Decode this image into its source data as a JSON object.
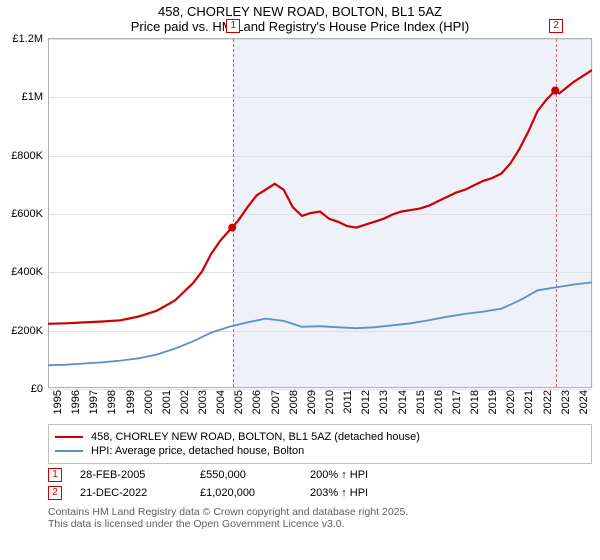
{
  "title": {
    "line1": "458, CHORLEY NEW ROAD, BOLTON, BL1 5AZ",
    "line2": "Price paid vs. HM Land Registry's House Price Index (HPI)",
    "fontsize": 13,
    "color": "#000000"
  },
  "chart": {
    "type": "line",
    "background_color": "#ffffff",
    "grid_color": "#e0e0e0",
    "axis_color": "#b0b0b0",
    "shaded_region": {
      "start_year": 2005.16,
      "end_year": 2025.0,
      "color": "rgba(160,180,210,0.18)"
    },
    "x": {
      "min": 1995,
      "max": 2025,
      "ticks": [
        1995,
        1996,
        1997,
        1998,
        1999,
        2000,
        2001,
        2002,
        2003,
        2004,
        2005,
        2006,
        2007,
        2008,
        2009,
        2010,
        2011,
        2012,
        2013,
        2014,
        2015,
        2016,
        2017,
        2018,
        2019,
        2020,
        2021,
        2022,
        2023,
        2024
      ],
      "label_fontsize": 11,
      "label_rotation_deg": -90
    },
    "y": {
      "min": 0,
      "max": 1200000,
      "ticks": [
        0,
        200000,
        400000,
        600000,
        800000,
        1000000,
        1200000
      ],
      "tick_labels": [
        "£0",
        "£200K",
        "£400K",
        "£600K",
        "£800K",
        "£1M",
        "£1.2M"
      ],
      "label_fontsize": 11
    },
    "series": [
      {
        "id": "price_paid",
        "label": "458, CHORLEY NEW ROAD, BOLTON, BL1 5AZ (detached house)",
        "color": "#cc0000",
        "line_width": 2.2,
        "data": [
          [
            1995.0,
            220000
          ],
          [
            1996.0,
            222000
          ],
          [
            1997.0,
            225000
          ],
          [
            1998.0,
            228000
          ],
          [
            1999.0,
            232000
          ],
          [
            2000.0,
            245000
          ],
          [
            2001.0,
            265000
          ],
          [
            2002.0,
            300000
          ],
          [
            2003.0,
            360000
          ],
          [
            2003.5,
            400000
          ],
          [
            2004.0,
            460000
          ],
          [
            2004.5,
            505000
          ],
          [
            2005.0,
            540000
          ],
          [
            2005.16,
            550000
          ],
          [
            2005.5,
            575000
          ],
          [
            2006.0,
            620000
          ],
          [
            2006.5,
            660000
          ],
          [
            2007.0,
            680000
          ],
          [
            2007.5,
            700000
          ],
          [
            2008.0,
            680000
          ],
          [
            2008.5,
            620000
          ],
          [
            2009.0,
            590000
          ],
          [
            2009.5,
            600000
          ],
          [
            2010.0,
            605000
          ],
          [
            2010.5,
            580000
          ],
          [
            2011.0,
            570000
          ],
          [
            2011.5,
            555000
          ],
          [
            2012.0,
            550000
          ],
          [
            2012.5,
            560000
          ],
          [
            2013.0,
            570000
          ],
          [
            2013.5,
            580000
          ],
          [
            2014.0,
            595000
          ],
          [
            2014.5,
            605000
          ],
          [
            2015.0,
            610000
          ],
          [
            2015.5,
            615000
          ],
          [
            2016.0,
            625000
          ],
          [
            2016.5,
            640000
          ],
          [
            2017.0,
            655000
          ],
          [
            2017.5,
            670000
          ],
          [
            2018.0,
            680000
          ],
          [
            2018.5,
            695000
          ],
          [
            2019.0,
            710000
          ],
          [
            2019.5,
            720000
          ],
          [
            2020.0,
            735000
          ],
          [
            2020.5,
            770000
          ],
          [
            2021.0,
            820000
          ],
          [
            2021.5,
            880000
          ],
          [
            2022.0,
            950000
          ],
          [
            2022.5,
            990000
          ],
          [
            2022.97,
            1020000
          ],
          [
            2023.2,
            1010000
          ],
          [
            2023.5,
            1025000
          ],
          [
            2024.0,
            1050000
          ],
          [
            2024.5,
            1070000
          ],
          [
            2025.0,
            1090000
          ]
        ]
      },
      {
        "id": "hpi",
        "label": "HPI: Average price, detached house, Bolton",
        "color": "#5b8fcf",
        "line_width": 1.8,
        "data": [
          [
            1995.0,
            78000
          ],
          [
            1996.0,
            80000
          ],
          [
            1997.0,
            84000
          ],
          [
            1998.0,
            88000
          ],
          [
            1999.0,
            94000
          ],
          [
            2000.0,
            102000
          ],
          [
            2001.0,
            115000
          ],
          [
            2002.0,
            135000
          ],
          [
            2003.0,
            160000
          ],
          [
            2004.0,
            190000
          ],
          [
            2005.0,
            210000
          ],
          [
            2006.0,
            225000
          ],
          [
            2007.0,
            238000
          ],
          [
            2008.0,
            230000
          ],
          [
            2009.0,
            210000
          ],
          [
            2010.0,
            212000
          ],
          [
            2011.0,
            208000
          ],
          [
            2012.0,
            205000
          ],
          [
            2013.0,
            208000
          ],
          [
            2014.0,
            215000
          ],
          [
            2015.0,
            222000
          ],
          [
            2016.0,
            232000
          ],
          [
            2017.0,
            244000
          ],
          [
            2018.0,
            254000
          ],
          [
            2019.0,
            262000
          ],
          [
            2020.0,
            272000
          ],
          [
            2021.0,
            300000
          ],
          [
            2022.0,
            335000
          ],
          [
            2023.0,
            345000
          ],
          [
            2024.0,
            355000
          ],
          [
            2025.0,
            362000
          ]
        ]
      }
    ],
    "markers": [
      {
        "n": 1,
        "x": 2005.16,
        "y": 550000,
        "dot_color": "#cc0000",
        "dot_r": 4,
        "label_top": true
      },
      {
        "n": 2,
        "x": 2022.97,
        "y": 1020000,
        "dot_color": "#cc0000",
        "dot_r": 4,
        "label_top": true
      }
    ]
  },
  "legend": {
    "border_color": "#c0c0c0",
    "items": [
      {
        "color": "#cc0000",
        "label": "458, CHORLEY NEW ROAD, BOLTON, BL1 5AZ (detached house)"
      },
      {
        "color": "#5b8fcf",
        "label": "HPI: Average price, detached house, Bolton"
      }
    ]
  },
  "events": [
    {
      "n": "1",
      "date": "28-FEB-2005",
      "price": "£550,000",
      "rel": "200% ↑ HPI"
    },
    {
      "n": "2",
      "date": "21-DEC-2022",
      "price": "£1,020,000",
      "rel": "203% ↑ HPI"
    }
  ],
  "attribution": {
    "line1": "Contains HM Land Registry data © Crown copyright and database right 2025.",
    "line2": "This data is licensed under the Open Government Licence v3.0.",
    "color": "#606060"
  }
}
